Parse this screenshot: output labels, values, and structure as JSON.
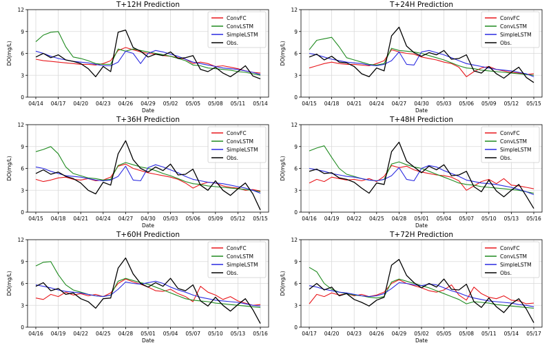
{
  "figure": {
    "ylabel": "DO(mg/L)",
    "xlabel": "Date"
  },
  "legend": {
    "items": [
      {
        "name": "ConvFC",
        "color": "#e8171c"
      },
      {
        "name": "ConvLSTM",
        "color": "#1e8a1e"
      },
      {
        "name": "SimpleLSTM",
        "color": "#2a2ae0"
      },
      {
        "name": "Obs.",
        "color": "#000000"
      }
    ]
  },
  "chart_data": [
    {
      "type": "line",
      "title": "T+12H Prediction",
      "ylim": [
        0,
        12
      ],
      "yticks": [
        "0",
        "3",
        "6",
        "9",
        "12"
      ],
      "xticks": [
        "04/14",
        "04/17",
        "04/20",
        "04/23",
        "04/26",
        "04/29",
        "05/02",
        "05/05",
        "05/08",
        "05/11",
        "05/14"
      ],
      "xlabel": "Date",
      "ylabel": "DO(mg/L)",
      "series": [
        {
          "name": "ConvFC",
          "color": "#e8171c",
          "values": [
            5.2,
            5.0,
            4.9,
            4.8,
            4.7,
            4.6,
            4.5,
            4.5,
            4.4,
            4.6,
            5.0,
            6.4,
            6.8,
            6.5,
            6.2,
            6.0,
            5.9,
            5.7,
            5.6,
            5.4,
            5.2,
            4.6,
            4.8,
            4.6,
            4.2,
            4.3,
            4.1,
            3.9,
            3.6,
            3.4,
            3.3
          ]
        },
        {
          "name": "ConvLSTM",
          "color": "#1e8a1e",
          "values": [
            7.6,
            8.5,
            8.9,
            9.0,
            6.9,
            5.5,
            5.3,
            5.0,
            4.6,
            4.5,
            4.5,
            6.6,
            6.3,
            6.6,
            6.4,
            6.2,
            6.0,
            5.8,
            5.6,
            5.3,
            5.0,
            4.4,
            4.3,
            4.0,
            3.9,
            3.8,
            3.7,
            3.5,
            3.4,
            3.2,
            3.0
          ]
        },
        {
          "name": "SimpleLSTM",
          "color": "#2a2ae0",
          "values": [
            6.3,
            6.0,
            5.6,
            5.3,
            5.1,
            4.9,
            4.8,
            4.7,
            4.5,
            4.3,
            4.3,
            4.8,
            6.3,
            6.0,
            4.6,
            6.0,
            6.4,
            6.2,
            5.9,
            5.6,
            5.2,
            4.8,
            4.6,
            4.4,
            4.2,
            4.0,
            3.9,
            3.8,
            3.6,
            3.4,
            3.1
          ]
        },
        {
          "name": "Obs.",
          "color": "#000000",
          "values": [
            5.5,
            6.0,
            5.4,
            5.8,
            5.1,
            4.9,
            4.6,
            3.9,
            2.8,
            4.2,
            3.5,
            8.9,
            9.2,
            6.8,
            6.3,
            5.5,
            5.9,
            5.7,
            6.2,
            5.3,
            5.4,
            5.7,
            3.8,
            3.5,
            4.1,
            3.3,
            2.8,
            3.5,
            4.3,
            2.9,
            2.5
          ]
        }
      ]
    },
    {
      "type": "line",
      "title": "T+24H Prediction",
      "ylim": [
        0,
        12
      ],
      "yticks": [
        "0",
        "3",
        "6",
        "9",
        "12"
      ],
      "xticks": [
        "04/15",
        "04/18",
        "04/21",
        "04/24",
        "04/27",
        "04/30",
        "05/03",
        "05/06",
        "05/09",
        "05/12",
        "05/15"
      ],
      "xlabel": "Date",
      "ylabel": "DO(mg/L)",
      "series": [
        {
          "name": "ConvFC",
          "color": "#e8171c",
          "values": [
            4.0,
            4.3,
            4.6,
            4.8,
            4.6,
            4.5,
            4.5,
            4.4,
            4.3,
            4.6,
            5.0,
            6.5,
            6.2,
            6.0,
            5.9,
            5.5,
            5.3,
            5.1,
            4.8,
            4.6,
            4.1,
            2.8,
            3.5,
            4.0,
            4.2,
            3.8,
            3.6,
            3.4,
            3.3,
            3.1,
            3.2
          ]
        },
        {
          "name": "ConvLSTM",
          "color": "#1e8a1e",
          "values": [
            6.5,
            7.8,
            8.0,
            8.2,
            6.9,
            5.4,
            5.1,
            4.8,
            4.5,
            4.4,
            4.6,
            6.7,
            6.4,
            6.3,
            6.2,
            6.0,
            5.7,
            5.4,
            5.1,
            4.7,
            4.3,
            4.0,
            3.9,
            3.7,
            3.6,
            3.5,
            3.4,
            3.3,
            3.2,
            3.1,
            3.0
          ]
        },
        {
          "name": "SimpleLSTM",
          "color": "#2a2ae0",
          "values": [
            6.0,
            5.8,
            5.5,
            5.2,
            5.0,
            4.8,
            4.7,
            4.6,
            4.4,
            4.3,
            4.5,
            5.0,
            6.2,
            4.5,
            4.4,
            6.2,
            6.4,
            6.1,
            5.8,
            5.4,
            5.0,
            4.6,
            4.4,
            4.2,
            4.0,
            3.8,
            3.7,
            3.6,
            3.4,
            3.2,
            2.8
          ]
        },
        {
          "name": "Obs.",
          "color": "#000000",
          "values": [
            5.5,
            5.9,
            5.1,
            5.6,
            4.8,
            4.7,
            4.2,
            3.2,
            2.8,
            4.0,
            3.6,
            8.4,
            9.6,
            7.0,
            6.1,
            5.6,
            6.1,
            5.8,
            6.4,
            5.2,
            5.3,
            5.8,
            3.6,
            3.3,
            4.2,
            3.2,
            2.6,
            3.4,
            4.1,
            2.7,
            2.0
          ]
        }
      ]
    },
    {
      "type": "line",
      "title": "T+36H Prediction",
      "ylim": [
        0,
        12
      ],
      "yticks": [
        "0",
        "3",
        "6",
        "9",
        "12"
      ],
      "xticks": [
        "04/15",
        "04/18",
        "04/21",
        "04/24",
        "04/27",
        "04/30",
        "05/03",
        "05/06",
        "05/09",
        "05/12",
        "05/15"
      ],
      "xlabel": "Date",
      "ylabel": "DO(mg/L)",
      "series": [
        {
          "name": "ConvFC",
          "color": "#e8171c",
          "values": [
            4.5,
            4.2,
            4.4,
            4.7,
            4.8,
            4.5,
            4.4,
            4.6,
            4.3,
            4.4,
            4.8,
            6.3,
            6.6,
            6.0,
            5.7,
            5.4,
            5.2,
            5.0,
            4.8,
            4.5,
            4.0,
            3.3,
            3.8,
            4.1,
            4.0,
            3.6,
            3.4,
            3.3,
            3.0,
            3.1,
            2.9
          ]
        },
        {
          "name": "ConvLSTM",
          "color": "#1e8a1e",
          "values": [
            8.3,
            8.6,
            9.0,
            8.0,
            6.2,
            5.3,
            5.0,
            4.7,
            4.6,
            4.4,
            4.5,
            6.4,
            6.8,
            6.5,
            6.2,
            6.0,
            5.7,
            5.3,
            5.0,
            4.6,
            4.2,
            3.9,
            3.8,
            3.6,
            3.5,
            3.4,
            3.3,
            3.2,
            3.1,
            3.0,
            2.8
          ]
        },
        {
          "name": "SimpleLSTM",
          "color": "#2a2ae0",
          "values": [
            6.2,
            6.0,
            5.6,
            5.3,
            5.0,
            4.9,
            4.8,
            4.6,
            4.4,
            4.3,
            4.4,
            4.9,
            6.3,
            4.4,
            4.3,
            6.1,
            6.5,
            6.2,
            5.8,
            5.4,
            4.9,
            4.5,
            4.3,
            4.1,
            4.0,
            3.9,
            3.7,
            3.5,
            3.3,
            3.0,
            2.6
          ]
        },
        {
          "name": "Obs.",
          "color": "#000000",
          "values": [
            5.3,
            5.8,
            5.2,
            5.5,
            4.9,
            4.6,
            4.0,
            3.0,
            2.5,
            4.1,
            3.7,
            8.0,
            9.8,
            7.2,
            6.0,
            5.5,
            6.2,
            5.7,
            6.6,
            5.1,
            5.2,
            5.9,
            3.7,
            3.0,
            4.3,
            3.0,
            2.3,
            3.2,
            4.0,
            2.5,
            0.3
          ]
        }
      ]
    },
    {
      "type": "line",
      "title": "T+48H Prediction",
      "ylim": [
        0,
        12
      ],
      "yticks": [
        "0",
        "3",
        "6",
        "9",
        "12"
      ],
      "xticks": [
        "04/16",
        "04/19",
        "04/22",
        "04/25",
        "04/28",
        "05/01",
        "05/04",
        "05/07",
        "05/10",
        "05/13",
        "05/16"
      ],
      "xlabel": "Date",
      "ylabel": "DO(mg/L)",
      "series": [
        {
          "name": "ConvFC",
          "color": "#e8171c",
          "values": [
            4.0,
            4.5,
            4.2,
            4.8,
            4.6,
            4.4,
            4.5,
            4.3,
            4.6,
            4.2,
            4.9,
            6.4,
            6.1,
            6.3,
            5.8,
            5.5,
            5.3,
            5.1,
            5.0,
            4.8,
            4.3,
            3.0,
            3.6,
            4.2,
            4.5,
            3.9,
            4.6,
            3.7,
            3.6,
            3.4,
            3.2
          ]
        },
        {
          "name": "ConvLSTM",
          "color": "#1e8a1e",
          "values": [
            8.4,
            8.8,
            9.1,
            7.5,
            6.0,
            5.2,
            4.9,
            4.6,
            4.4,
            4.3,
            4.5,
            6.6,
            6.9,
            6.5,
            6.2,
            6.0,
            5.6,
            5.2,
            4.8,
            4.4,
            4.0,
            3.8,
            3.7,
            3.5,
            3.4,
            3.3,
            3.2,
            3.1,
            3.0,
            2.8,
            2.6
          ]
        },
        {
          "name": "SimpleLSTM",
          "color": "#2a2ae0",
          "values": [
            6.0,
            5.8,
            5.6,
            5.3,
            5.1,
            4.9,
            4.8,
            4.6,
            4.4,
            4.3,
            4.5,
            5.0,
            6.1,
            4.5,
            4.3,
            6.0,
            6.4,
            6.2,
            5.7,
            5.3,
            4.9,
            4.4,
            4.2,
            4.0,
            3.9,
            3.8,
            3.6,
            3.4,
            3.1,
            2.8,
            2.4
          ]
        },
        {
          "name": "Obs.",
          "color": "#000000",
          "values": [
            5.6,
            5.9,
            5.3,
            5.4,
            4.7,
            4.5,
            4.1,
            3.3,
            2.6,
            4.0,
            3.8,
            8.3,
            9.6,
            7.0,
            6.2,
            5.4,
            6.3,
            5.8,
            6.5,
            5.0,
            5.1,
            5.6,
            3.5,
            2.8,
            4.4,
            2.9,
            2.1,
            3.0,
            3.8,
            2.2,
            0.5
          ]
        }
      ]
    },
    {
      "type": "line",
      "title": "T+60H Prediction",
      "ylim": [
        0,
        12
      ],
      "yticks": [
        "0",
        "3",
        "6",
        "9",
        "12"
      ],
      "xticks": [
        "04/16",
        "04/19",
        "04/22",
        "04/25",
        "04/28",
        "05/01",
        "05/04",
        "05/07",
        "05/10",
        "05/13",
        "05/16"
      ],
      "xlabel": "Date",
      "ylabel": "DO(mg/L)",
      "series": [
        {
          "name": "ConvFC",
          "color": "#e8171c",
          "values": [
            4.0,
            3.8,
            4.5,
            4.2,
            4.8,
            4.4,
            4.6,
            4.3,
            4.5,
            4.2,
            4.7,
            6.0,
            6.6,
            6.2,
            5.9,
            5.5,
            5.0,
            4.9,
            5.2,
            4.6,
            4.2,
            3.5,
            5.6,
            4.8,
            4.4,
            3.8,
            4.2,
            3.6,
            3.3,
            3.0,
            3.1
          ]
        },
        {
          "name": "ConvLSTM",
          "color": "#1e8a1e",
          "values": [
            8.4,
            8.9,
            9.0,
            7.2,
            5.8,
            5.1,
            4.8,
            4.5,
            4.3,
            4.2,
            4.4,
            6.3,
            6.7,
            6.4,
            6.1,
            5.9,
            5.5,
            5.1,
            4.7,
            4.3,
            3.9,
            3.7,
            3.6,
            3.5,
            3.3,
            3.2,
            3.1,
            3.0,
            2.9,
            2.8,
            2.7
          ]
        },
        {
          "name": "SimpleLSTM",
          "color": "#2a2ae0",
          "values": [
            5.8,
            5.6,
            5.4,
            5.1,
            4.9,
            4.8,
            4.7,
            4.5,
            4.3,
            4.2,
            4.4,
            5.2,
            6.2,
            6.0,
            5.9,
            6.1,
            6.3,
            6.0,
            5.5,
            5.1,
            4.8,
            4.4,
            4.1,
            3.9,
            3.7,
            3.6,
            3.5,
            3.4,
            3.2,
            3.0,
            2.9
          ]
        },
        {
          "name": "Obs.",
          "color": "#000000",
          "values": [
            5.6,
            6.1,
            5.0,
            5.3,
            4.5,
            4.7,
            3.9,
            3.5,
            2.6,
            3.9,
            4.0,
            8.1,
            9.5,
            7.3,
            6.0,
            5.5,
            6.1,
            5.6,
            6.7,
            5.3,
            5.0,
            5.8,
            3.6,
            2.9,
            4.1,
            3.0,
            2.2,
            3.1,
            3.9,
            2.4,
            0.5
          ]
        }
      ]
    },
    {
      "type": "line",
      "title": "T+72H Prediction",
      "ylim": [
        0,
        12
      ],
      "yticks": [
        "0",
        "3",
        "6",
        "9",
        "12"
      ],
      "xticks": [
        "04/17",
        "04/20",
        "04/23",
        "04/26",
        "04/29",
        "05/02",
        "05/05",
        "05/08",
        "05/11",
        "05/14",
        "05/17"
      ],
      "xlabel": "Date",
      "ylabel": "DO(mg/L)",
      "series": [
        {
          "name": "ConvFC",
          "color": "#e8171c",
          "values": [
            3.2,
            4.5,
            4.2,
            4.7,
            4.4,
            4.6,
            4.3,
            4.5,
            4.2,
            4.4,
            4.8,
            6.0,
            6.5,
            6.0,
            5.7,
            5.4,
            5.0,
            4.8,
            5.1,
            5.8,
            4.4,
            3.7,
            5.5,
            4.6,
            4.1,
            3.9,
            4.3,
            3.7,
            3.6,
            3.2,
            3.3
          ]
        },
        {
          "name": "ConvLSTM",
          "color": "#1e8a1e",
          "values": [
            8.2,
            7.6,
            6.0,
            5.2,
            4.8,
            4.6,
            4.4,
            4.3,
            4.1,
            4.0,
            4.2,
            6.2,
            6.6,
            6.3,
            6.0,
            5.7,
            5.4,
            5.0,
            4.6,
            4.2,
            3.8,
            3.2,
            3.5,
            3.4,
            3.3,
            3.1,
            3.0,
            2.9,
            2.8,
            2.7,
            2.6
          ]
        },
        {
          "name": "SimpleLSTM",
          "color": "#2a2ae0",
          "values": [
            5.7,
            5.5,
            5.2,
            5.0,
            4.8,
            4.7,
            4.5,
            4.3,
            4.2,
            4.3,
            4.6,
            5.3,
            6.1,
            6.0,
            5.8,
            5.7,
            5.9,
            5.8,
            5.4,
            5.0,
            4.7,
            4.3,
            4.0,
            3.8,
            3.6,
            3.5,
            3.4,
            3.3,
            3.1,
            3.0,
            2.8
          ]
        },
        {
          "name": "Obs.",
          "color": "#000000",
          "values": [
            5.2,
            6.0,
            5.1,
            5.5,
            4.3,
            4.6,
            3.8,
            3.4,
            2.9,
            3.7,
            4.1,
            8.5,
            9.3,
            7.1,
            6.1,
            5.4,
            6.0,
            5.5,
            6.6,
            5.2,
            5.1,
            5.9,
            3.5,
            2.7,
            4.0,
            2.8,
            2.0,
            3.2,
            3.9,
            2.5,
            0.6
          ]
        }
      ]
    }
  ]
}
